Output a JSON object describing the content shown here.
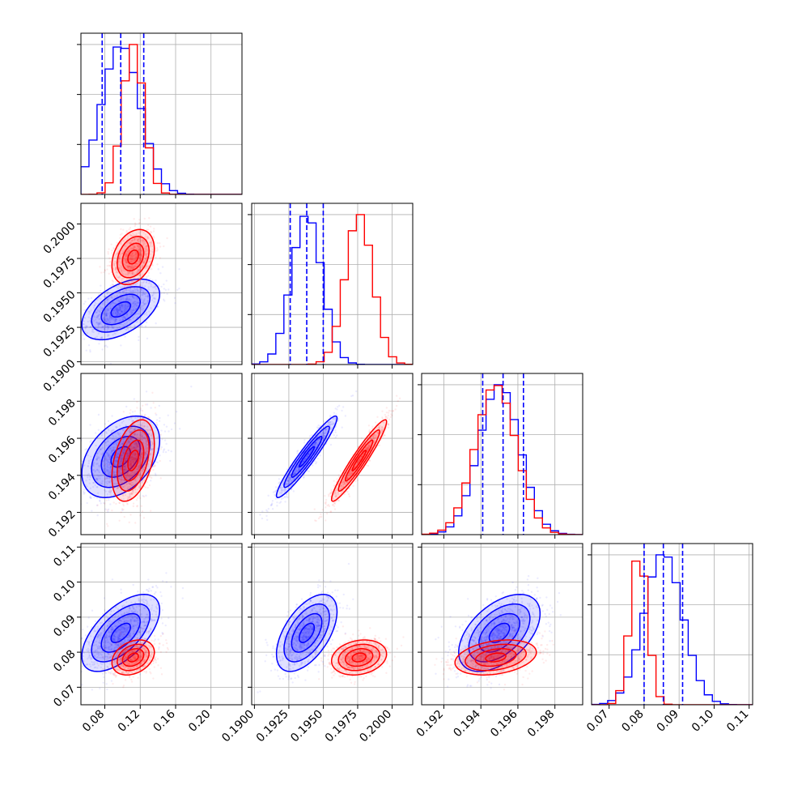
{
  "colors": {
    "series_a": "#0000ff",
    "series_b": "#ff0000",
    "grid": "#b0b0b0",
    "background": "#ffffff"
  },
  "chart_data": {
    "type": "corner",
    "grid": true,
    "n_params": 4,
    "series": [
      {
        "color": "#0000ff",
        "mean": [
          0.098,
          0.1938,
          0.195,
          0.0855
        ],
        "std": [
          0.022,
          0.0011,
          0.0011,
          0.0055
        ],
        "corr": [
          [
            1,
            0.5,
            0.4,
            0.6
          ],
          [
            0.5,
            1,
            0.95,
            0.55
          ],
          [
            0.4,
            0.95,
            1,
            0.5
          ],
          [
            0.6,
            0.55,
            0.5,
            1
          ]
        ]
      },
      {
        "color": "#ff0000",
        "mean": [
          0.112,
          0.1976,
          0.1948,
          0.0785
        ],
        "std": [
          0.012,
          0.001,
          0.0011,
          0.0025
        ],
        "corr": [
          [
            1,
            0.3,
            0.4,
            0.3
          ],
          [
            0.3,
            1,
            0.95,
            0.2
          ],
          [
            0.4,
            0.95,
            1,
            0.3
          ],
          [
            0.3,
            0.2,
            0.3,
            1
          ]
        ]
      }
    ],
    "quantiles": [
      [
        0.077,
        0.098,
        0.124
      ],
      [
        0.1926,
        0.1938,
        0.195
      ],
      [
        0.1941,
        0.1952,
        0.1963
      ],
      [
        0.08,
        0.0855,
        0.091
      ]
    ],
    "params": [
      {
        "range": [
          0.053,
          0.235
        ],
        "ticks": [
          "0.08",
          "0.12",
          "0.16",
          "0.20"
        ],
        "tick_values": [
          0.08,
          0.12,
          0.16,
          0.2
        ]
      },
      {
        "range": [
          0.1898,
          0.2015
        ],
        "ticks": [
          "0.1900",
          "0.1925",
          "0.1950",
          "0.1975",
          "0.2000"
        ],
        "tick_values": [
          0.19,
          0.1925,
          0.195,
          0.1975,
          0.2
        ]
      },
      {
        "range": [
          0.1908,
          0.1995
        ],
        "ticks": [
          "0.192",
          "0.194",
          "0.196",
          "0.198"
        ],
        "tick_values": [
          0.192,
          0.194,
          0.196,
          0.198
        ]
      },
      {
        "range": [
          0.065,
          0.111
        ],
        "ticks": [
          "0.07",
          "0.08",
          "0.09",
          "0.10",
          "0.11"
        ],
        "tick_values": [
          0.07,
          0.08,
          0.09,
          0.1,
          0.11
        ]
      }
    ]
  }
}
